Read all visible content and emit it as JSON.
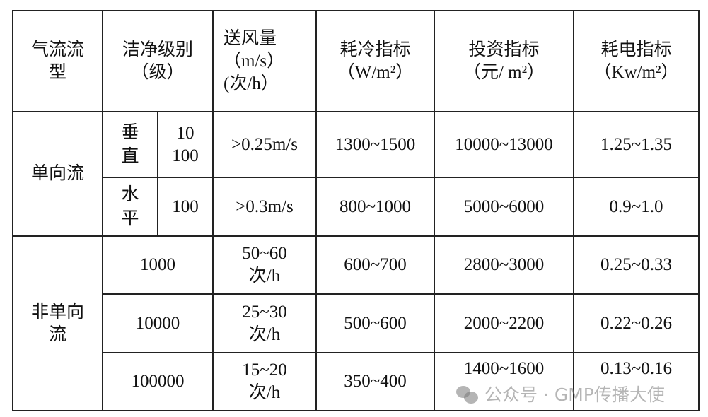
{
  "table": {
    "headers": {
      "airflow_type": "气流流型",
      "clean_class": "洁净级别（级）",
      "air_volume": "送风量（m/s）(次/h）",
      "cooling": "耗冷指标（W/m²）",
      "investment": "投资指标（元/ m²）",
      "power": "耗电指标（Kw/m²）"
    },
    "groups": [
      {
        "airflow_type": "单向流",
        "rows": [
          {
            "orientation": "垂直",
            "class": "10\n100",
            "air_volume": ">0.25m/s",
            "cooling": "1300~1500",
            "investment": "10000~13000",
            "power": "1.25~1.35"
          },
          {
            "orientation": "水平",
            "class": "100",
            "air_volume": ">0.3m/s",
            "cooling": "800~1000",
            "investment": "5000~6000",
            "power": "0.9~1.0"
          }
        ]
      },
      {
        "airflow_type": "非单向流",
        "rows": [
          {
            "class": "1000",
            "air_volume": "50~60次/h",
            "cooling": "600~700",
            "investment": "2800~3000",
            "power": "0.25~0.33"
          },
          {
            "class": "10000",
            "air_volume": "25~30次/h",
            "cooling": "500~600",
            "investment": "2000~2200",
            "power": "0.22~0.26"
          },
          {
            "class": "100000",
            "air_volume": "15~20次/h",
            "cooling": "350~400",
            "investment": "1400~1600",
            "power": "0.13~0.16"
          }
        ]
      }
    ]
  },
  "watermark": {
    "text": "公众号 · GMP传播大使",
    "icon": "wechat-icon"
  }
}
